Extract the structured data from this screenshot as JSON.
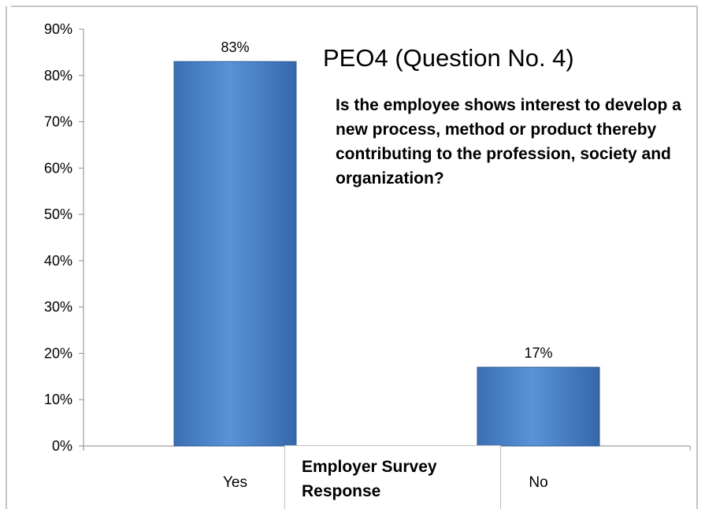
{
  "chart_data": {
    "type": "bar",
    "title": "PEO4 (Question No. 4)",
    "subtitle": "Is the employee shows interest to develop a new process, method or product thereby contributing to the profession, society and organization?",
    "xlabel": "Employer Survey Response",
    "ylabel": "",
    "categories": [
      "Yes",
      "No"
    ],
    "values": [
      83,
      17
    ],
    "data_labels": [
      "83%",
      "17%"
    ],
    "ylim": [
      0,
      90
    ],
    "yticks": [
      0,
      10,
      20,
      30,
      40,
      50,
      60,
      70,
      80,
      90
    ],
    "ytick_labels": [
      "0%",
      "10%",
      "20%",
      "30%",
      "40%",
      "50%",
      "60%",
      "70%",
      "80%",
      "90%"
    ],
    "grid": false,
    "legend": "none",
    "bar_color": "#4f81bd"
  }
}
